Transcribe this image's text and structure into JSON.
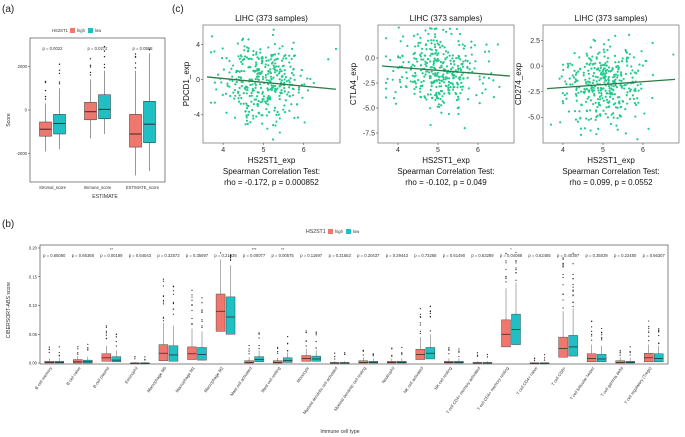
{
  "colors": {
    "high": "#f0776e",
    "low": "#1fbfc3",
    "scatter_point": "#22c98a",
    "fit_line": "#2d7a4a",
    "star": "#e0443a"
  },
  "panel_a": {
    "label": "(a)",
    "legend_title": "HS2ST1",
    "legend_high": "high",
    "legend_low": "low",
    "ylabel": "Score",
    "xlabel": "ESTIMATE",
    "chart_data": {
      "type": "box",
      "categories": [
        "Stromal_score",
        "Immune_score",
        "ESTIMATE_score"
      ],
      "pvalues": [
        "p = 0.0022",
        "p = 0.0272",
        "p = 0.0568"
      ],
      "yticks": [
        "2000",
        "0",
        "-2000"
      ],
      "ylim": [
        -3300,
        3300
      ],
      "series": [
        {
          "name": "high",
          "boxes": [
            {
              "min": -1900,
              "q1": -1200,
              "median": -880,
              "q3": -550,
              "max": 300
            },
            {
              "min": -1300,
              "q1": -450,
              "median": -80,
              "q3": 350,
              "max": 1400
            },
            {
              "min": -3000,
              "q1": -1700,
              "median": -1100,
              "q3": -200,
              "max": 1800
            }
          ]
        },
        {
          "name": "low",
          "boxes": [
            {
              "min": -1800,
              "q1": -1100,
              "median": -620,
              "q3": -200,
              "max": 1000
            },
            {
              "min": -1100,
              "q1": -400,
              "median": 30,
              "q3": 700,
              "max": 1800
            },
            {
              "min": -2800,
              "q1": -1500,
              "median": -650,
              "q3": 400,
              "max": 2600
            }
          ]
        }
      ]
    }
  },
  "panel_b": {
    "label": "(b)",
    "legend_title": "HS2ST1",
    "legend_high": "high",
    "legend_low": "low",
    "ylabel": "CIBERSORT-ABS score",
    "xlabel": "Immune cell type",
    "chart_data": {
      "type": "box",
      "ylim": [
        0,
        0.2
      ],
      "yticks": [
        "0.20",
        "0.15",
        "0.10",
        "0.05",
        "0.00"
      ],
      "categories": [
        "B cell memory",
        "B cell naive",
        "B cell plasma",
        "Eosinophil",
        "Macrophage M0",
        "Macrophage M1",
        "Macrophage M2",
        "Mast cell activated",
        "Mast cell resting",
        "Monocyte",
        "Myeloid dendritic cell activated",
        "Myeloid dendritic cell resting",
        "Neutrophil",
        "NK cell activated",
        "NK cell resting",
        "T cell CD4+ memory activated",
        "T cell CD4+ memory resting",
        "T cell CD4+ naive",
        "T cell CD8+",
        "T cell follicular helper",
        "T cell gamma delta",
        "T cell regulatory (Tregs)"
      ],
      "pvalues": [
        "p = 0.65060",
        "p = 0.66368",
        "p = 0.00189",
        "p = 0.64043",
        "p = 0.32573",
        "p = 0.35697",
        "p = 0.21036",
        "p = 0.00077",
        "p = 0.00575",
        "p = 0.11697",
        "p = 0.31653",
        "p = 0.20437",
        "p = 0.29443",
        "p = 0.73268",
        "p = 0.61490",
        "p = 0.63289",
        "p = 0.04088",
        "p = 0.62485",
        "p = 0.40397",
        "p = 0.35039",
        "p = 0.22480",
        "p = 0.66307"
      ],
      "significance": [
        "",
        "",
        "**",
        "",
        "",
        "",
        "",
        "***",
        "**",
        "",
        "",
        "",
        "",
        "",
        "",
        "",
        "*",
        "",
        "",
        "",
        "",
        ""
      ],
      "series": [
        {
          "name": "high",
          "boxes": [
            {
              "q1": 0.0,
              "median": 0.001,
              "q3": 0.003,
              "max": 0.008
            },
            {
              "q1": 0.0,
              "median": 0.002,
              "q3": 0.006,
              "max": 0.012
            },
            {
              "q1": 0.003,
              "median": 0.009,
              "q3": 0.016,
              "max": 0.03
            },
            {
              "q1": 0.0,
              "median": 0.0,
              "q3": 0.0,
              "max": 0.001
            },
            {
              "q1": 0.004,
              "median": 0.017,
              "q3": 0.032,
              "max": 0.07
            },
            {
              "q1": 0.006,
              "median": 0.016,
              "q3": 0.028,
              "max": 0.06
            },
            {
              "q1": 0.055,
              "median": 0.09,
              "q3": 0.12,
              "max": 0.18
            },
            {
              "q1": 0.0,
              "median": 0.001,
              "q3": 0.004,
              "max": 0.01
            },
            {
              "q1": 0.0,
              "median": 0.001,
              "q3": 0.004,
              "max": 0.009
            },
            {
              "q1": 0.003,
              "median": 0.008,
              "q3": 0.013,
              "max": 0.025
            },
            {
              "q1": 0.0,
              "median": 0.0,
              "q3": 0.001,
              "max": 0.003
            },
            {
              "q1": 0.0,
              "median": 0.001,
              "q3": 0.004,
              "max": 0.01
            },
            {
              "q1": 0.0,
              "median": 0.001,
              "q3": 0.003,
              "max": 0.008
            },
            {
              "q1": 0.006,
              "median": 0.015,
              "q3": 0.024,
              "max": 0.045
            },
            {
              "q1": 0.0,
              "median": 0.001,
              "q3": 0.003,
              "max": 0.008
            },
            {
              "q1": 0.0,
              "median": 0.0,
              "q3": 0.001,
              "max": 0.003
            },
            {
              "q1": 0.028,
              "median": 0.05,
              "q3": 0.075,
              "max": 0.13
            },
            {
              "q1": 0.0,
              "median": 0.0,
              "q3": 0.0,
              "max": 0.001
            },
            {
              "q1": 0.01,
              "median": 0.025,
              "q3": 0.045,
              "max": 0.09
            },
            {
              "q1": 0.002,
              "median": 0.008,
              "q3": 0.016,
              "max": 0.032
            },
            {
              "q1": 0.0,
              "median": 0.001,
              "q3": 0.004,
              "max": 0.01
            },
            {
              "q1": 0.002,
              "median": 0.009,
              "q3": 0.017,
              "max": 0.032
            }
          ]
        },
        {
          "name": "low",
          "boxes": [
            {
              "q1": 0.0,
              "median": 0.001,
              "q3": 0.003,
              "max": 0.009
            },
            {
              "q1": 0.0,
              "median": 0.002,
              "q3": 0.005,
              "max": 0.011
            },
            {
              "q1": 0.002,
              "median": 0.005,
              "q3": 0.011,
              "max": 0.022
            },
            {
              "q1": 0.0,
              "median": 0.0,
              "q3": 0.0,
              "max": 0.001
            },
            {
              "q1": 0.003,
              "median": 0.014,
              "q3": 0.03,
              "max": 0.065
            },
            {
              "q1": 0.005,
              "median": 0.015,
              "q3": 0.027,
              "max": 0.055
            },
            {
              "q1": 0.05,
              "median": 0.08,
              "q3": 0.115,
              "max": 0.17
            },
            {
              "q1": 0.002,
              "median": 0.006,
              "q3": 0.011,
              "max": 0.022
            },
            {
              "q1": 0.001,
              "median": 0.004,
              "q3": 0.009,
              "max": 0.018
            },
            {
              "q1": 0.003,
              "median": 0.007,
              "q3": 0.012,
              "max": 0.022
            },
            {
              "q1": 0.0,
              "median": 0.0,
              "q3": 0.001,
              "max": 0.003
            },
            {
              "q1": 0.0,
              "median": 0.001,
              "q3": 0.003,
              "max": 0.008
            },
            {
              "q1": 0.0,
              "median": 0.001,
              "q3": 0.003,
              "max": 0.008
            },
            {
              "q1": 0.007,
              "median": 0.017,
              "q3": 0.027,
              "max": 0.05
            },
            {
              "q1": 0.0,
              "median": 0.001,
              "q3": 0.003,
              "max": 0.008
            },
            {
              "q1": 0.0,
              "median": 0.0,
              "q3": 0.001,
              "max": 0.003
            },
            {
              "q1": 0.032,
              "median": 0.058,
              "q3": 0.085,
              "max": 0.14
            },
            {
              "q1": 0.0,
              "median": 0.0,
              "q3": 0.0,
              "max": 0.001
            },
            {
              "q1": 0.012,
              "median": 0.028,
              "q3": 0.048,
              "max": 0.095
            },
            {
              "q1": 0.002,
              "median": 0.007,
              "q3": 0.015,
              "max": 0.03
            },
            {
              "q1": 0.0,
              "median": 0.001,
              "q3": 0.003,
              "max": 0.009
            },
            {
              "q1": 0.002,
              "median": 0.008,
              "q3": 0.016,
              "max": 0.03
            }
          ]
        }
      ]
    }
  },
  "panel_c": {
    "label": "(c)",
    "xlabel": "HS2ST1_exp",
    "test_label": "Spearman Correlation Test:",
    "chart_data": [
      {
        "type": "scatter",
        "title": "LIHC (373 samples)",
        "ylabel": "PDCD1_exp",
        "xlim": [
          3.5,
          6.9
        ],
        "ylim": [
          -7.2,
          6.2
        ],
        "xticks": [
          "4",
          "5",
          "6"
        ],
        "yticks": [
          "4",
          "0",
          "-4"
        ],
        "rho_text": "rho = -0.172, p = 0.000852",
        "fit": {
          "x": [
            3.6,
            6.8
          ],
          "y": [
            0.3,
            -1.1
          ]
        }
      },
      {
        "type": "scatter",
        "title": "LIHC (373 samples)",
        "ylabel": "CTLA4_exp",
        "xlim": [
          3.5,
          6.9
        ],
        "ylim": [
          -8.5,
          3.3
        ],
        "xticks": [
          "4",
          "5",
          "6"
        ],
        "yticks": [
          "0.0",
          "-2.5",
          "-5.0",
          "-7.5"
        ],
        "rho_text": "rho = -0.102, p = 0.049",
        "fit": {
          "x": [
            3.6,
            6.8
          ],
          "y": [
            -0.8,
            -1.8
          ]
        }
      },
      {
        "type": "scatter",
        "title": "LIHC (373 samples)",
        "ylabel": "CD274_exp",
        "xlim": [
          3.5,
          6.9
        ],
        "ylim": [
          -7.5,
          4.0
        ],
        "xticks": [
          "4",
          "5",
          "6"
        ],
        "yticks": [
          "2.5",
          "0.0",
          "-2.5",
          "-5.0"
        ],
        "rho_text": "rho = 0.099, p = 0.0552",
        "fit": {
          "x": [
            3.6,
            6.8
          ],
          "y": [
            -2.2,
            -1.3
          ]
        }
      }
    ]
  }
}
